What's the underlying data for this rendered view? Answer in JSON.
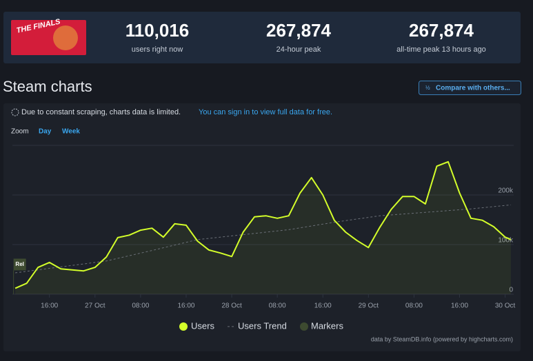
{
  "header": {
    "game_logo": "THE FINALS",
    "stats": [
      {
        "value": "110,016",
        "label": "users right now"
      },
      {
        "value": "267,874",
        "label": "24-hour peak"
      },
      {
        "value": "267,874",
        "label": "all-time peak 13 hours ago"
      }
    ]
  },
  "section_title": "Steam charts",
  "compare_button": "Compare with others...",
  "notice": {
    "text": "Due to constant scraping, charts data is limited.",
    "link": "You can sign in to view full data for free."
  },
  "zoom": {
    "label": "Zoom",
    "options": [
      "Day",
      "Week"
    ]
  },
  "chart_data": {
    "type": "line",
    "xlim": [
      33.5,
      121.5
    ],
    "ylim": [
      0,
      300000
    ],
    "xticks": [
      {
        "value": 40,
        "label": "16:00"
      },
      {
        "value": 48,
        "label": "27 Oct"
      },
      {
        "value": 56,
        "label": "08:00"
      },
      {
        "value": 64,
        "label": "16:00"
      },
      {
        "value": 72,
        "label": "28 Oct"
      },
      {
        "value": 80,
        "label": "08:00"
      },
      {
        "value": 88,
        "label": "16:00"
      },
      {
        "value": 96,
        "label": "29 Oct"
      },
      {
        "value": 104,
        "label": "08:00"
      },
      {
        "value": 112,
        "label": "16:00"
      },
      {
        "value": 120,
        "label": "30 Oct"
      }
    ],
    "yticks": [
      0,
      {
        "value": 100000,
        "label": "100k"
      },
      {
        "value": 200000,
        "label": "200k"
      }
    ],
    "grid": true,
    "series": [
      {
        "name": "Users",
        "color": "#d4ff2a",
        "x": [
          34,
          36,
          38,
          40,
          42,
          44,
          46,
          48,
          50,
          52,
          54,
          56,
          58,
          60,
          62,
          64,
          66,
          68,
          70,
          72,
          74,
          76,
          78,
          80,
          82,
          84,
          86,
          88,
          90,
          92,
          94,
          96,
          98,
          100,
          102,
          104,
          106,
          108,
          110,
          112,
          114,
          116,
          118,
          120,
          121
        ],
        "values": [
          12000,
          22000,
          54000,
          64000,
          51000,
          49000,
          47000,
          54000,
          75000,
          114000,
          119000,
          129000,
          133000,
          115000,
          142000,
          139000,
          107000,
          89000,
          83000,
          76000,
          125000,
          156000,
          158000,
          153000,
          158000,
          204000,
          235000,
          200000,
          149000,
          125000,
          108000,
          94000,
          135000,
          171000,
          197000,
          197000,
          182000,
          258000,
          267000,
          204000,
          153000,
          149000,
          136000,
          115000,
          110000
        ]
      },
      {
        "name": "Users Trend",
        "color": "#6b7078",
        "x": [
          34,
          42,
          50,
          58,
          66,
          74,
          82,
          90,
          98,
          106,
          114,
          121
        ],
        "values": [
          43000,
          55000,
          67000,
          88000,
          110000,
          120000,
          130000,
          145000,
          158000,
          165000,
          172000,
          180000
        ]
      },
      {
        "name": "Markers",
        "color": "#3d4a30",
        "x": [
          33.7
        ],
        "values": [
          48000
        ],
        "labels": [
          "Rel"
        ]
      }
    ],
    "credits": "data by SteamDB.info (powered by highcharts.com)"
  }
}
